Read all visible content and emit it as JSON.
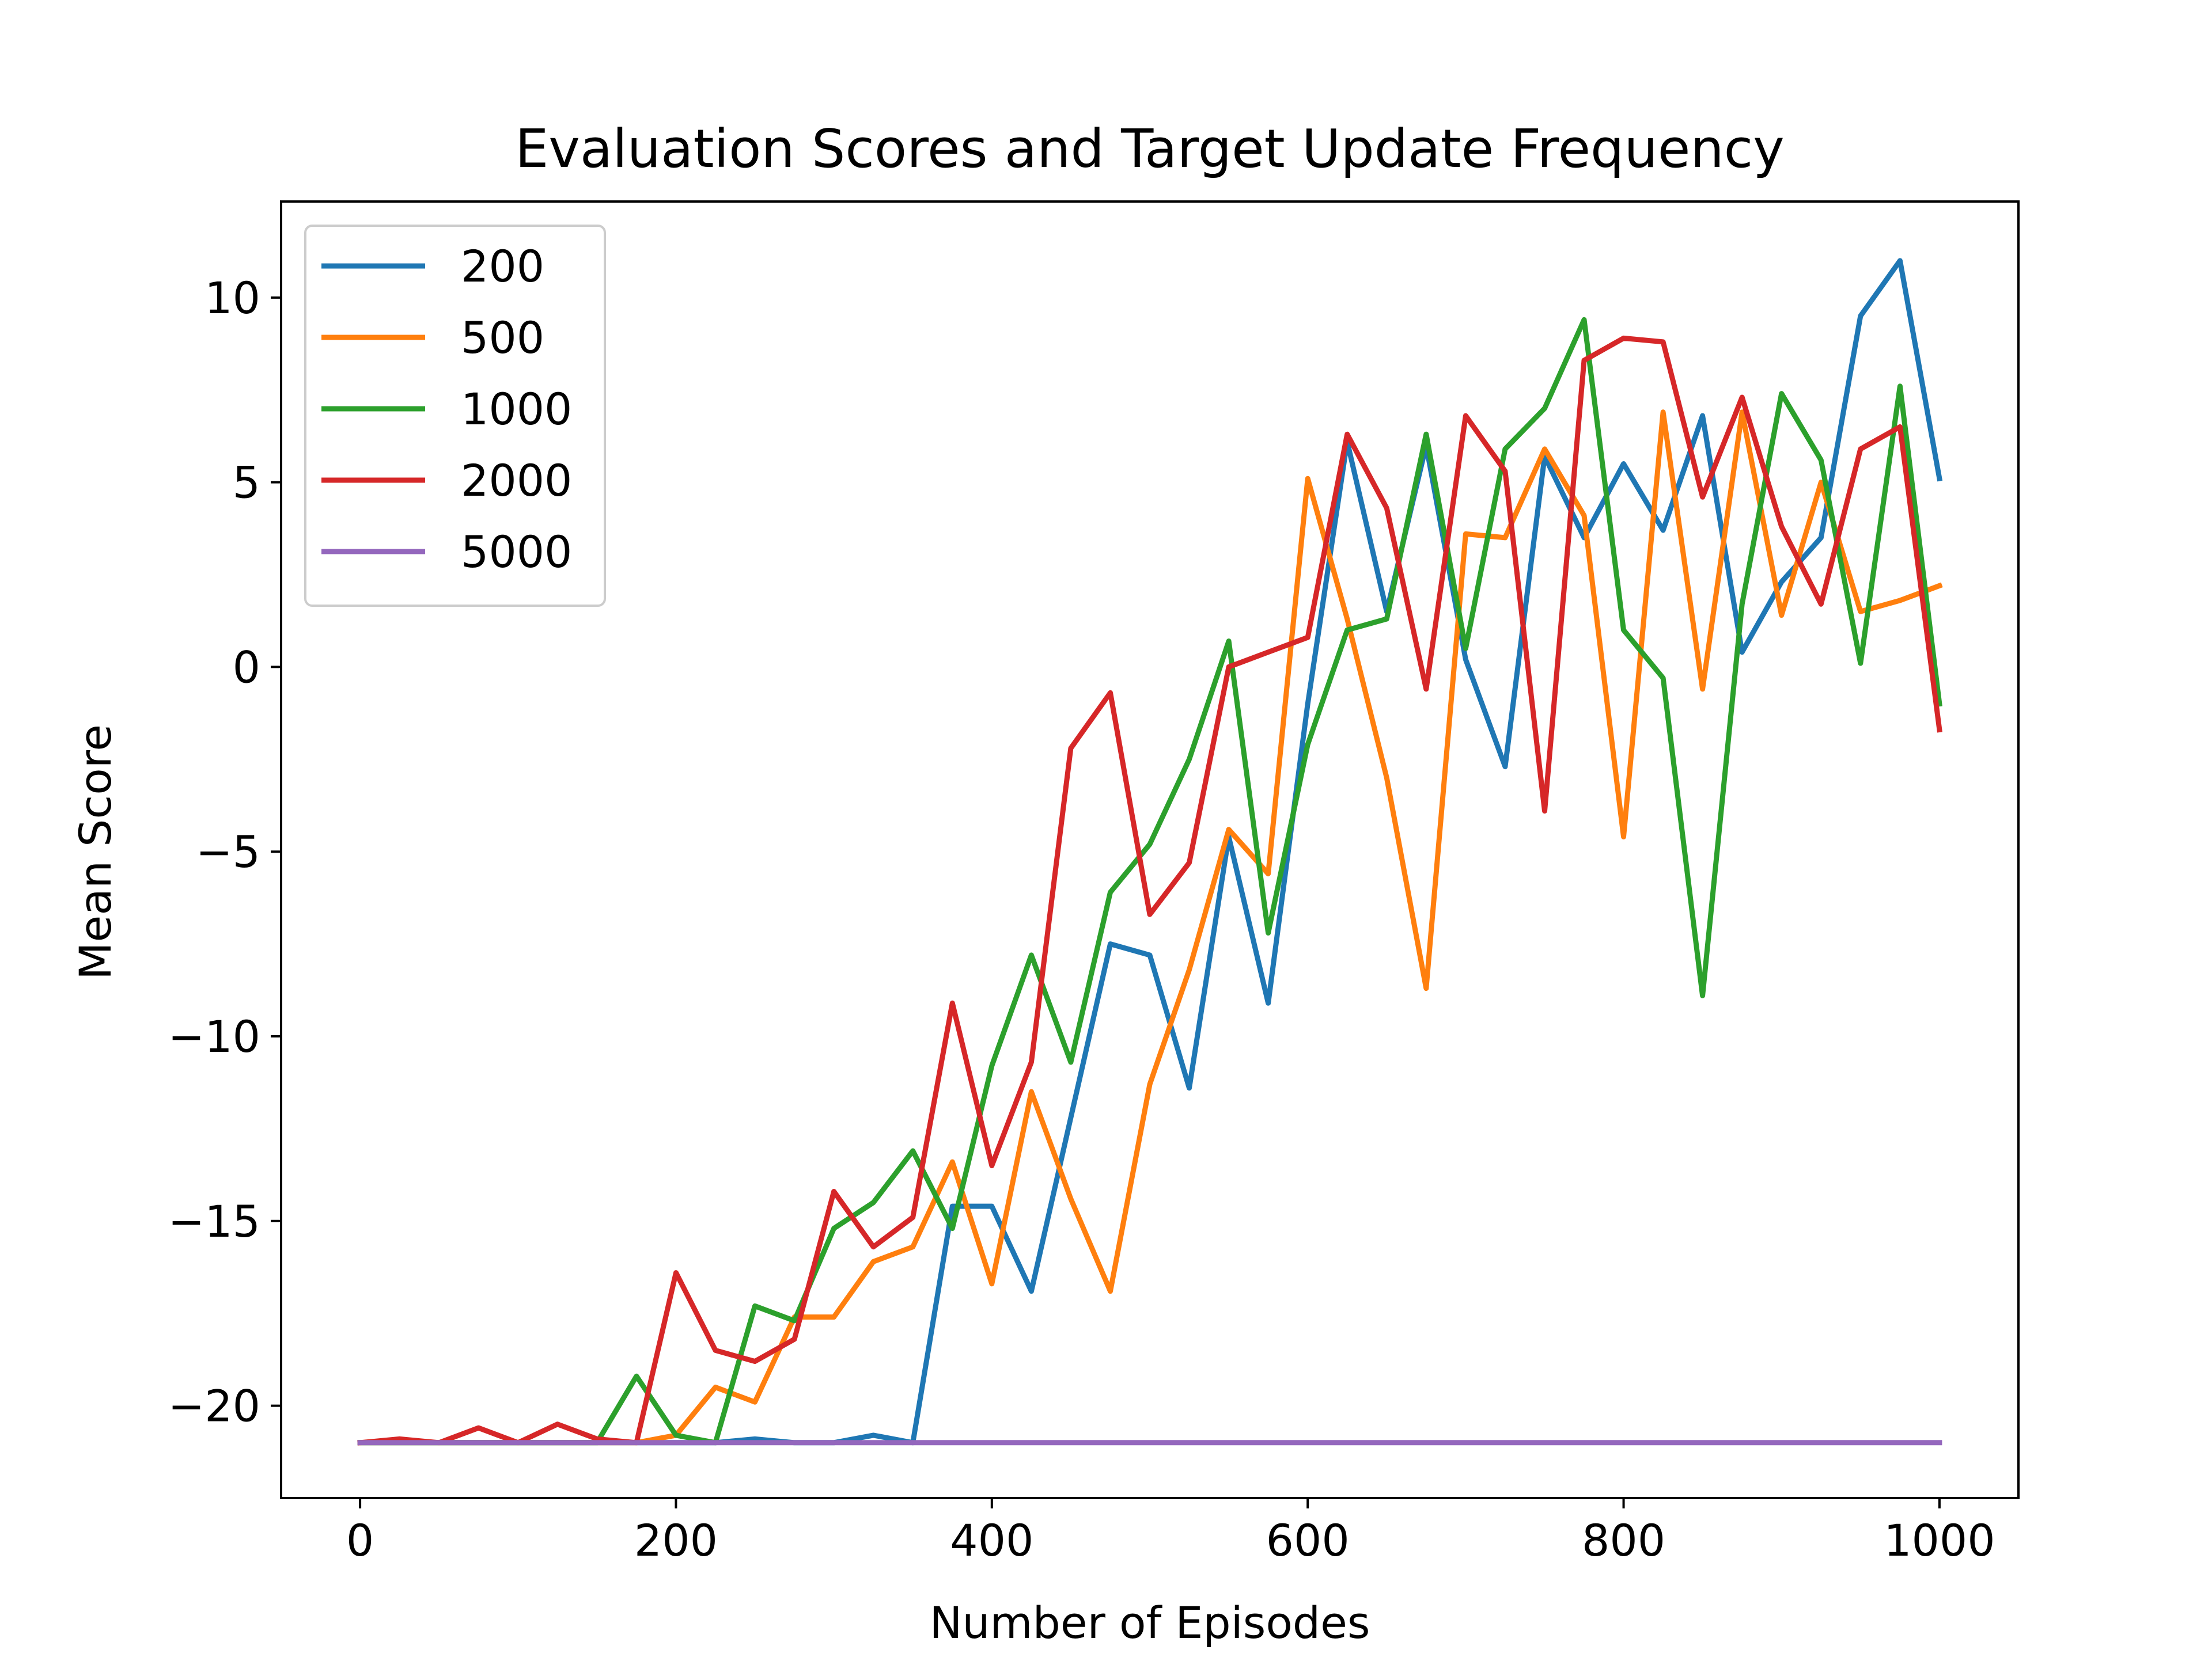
{
  "chart_data": {
    "type": "line",
    "title": "Evaluation Scores and Target Update Frequency",
    "xlabel": "Number of Episodes",
    "ylabel": "Mean Score",
    "xlim": [
      -50,
      1050
    ],
    "ylim": [
      -22.5,
      12.6
    ],
    "xticks": [
      0,
      200,
      400,
      600,
      800,
      1000
    ],
    "yticks": [
      -20,
      -15,
      -10,
      -5,
      0,
      5,
      10
    ],
    "ytick_labels": [
      "−20",
      "−15",
      "−10",
      "−5",
      "0",
      "5",
      "10"
    ],
    "grid": false,
    "legend_position": "top-left",
    "x": [
      0,
      25,
      50,
      75,
      100,
      125,
      150,
      175,
      200,
      225,
      250,
      275,
      300,
      325,
      350,
      375,
      400,
      425,
      450,
      475,
      500,
      525,
      550,
      575,
      600,
      625,
      650,
      675,
      700,
      725,
      750,
      775,
      800,
      825,
      850,
      875,
      900,
      925,
      950,
      975,
      1000
    ],
    "series": [
      {
        "name": "200",
        "color": "#1f77b4",
        "values": [
          -21,
          -21,
          -21,
          -21,
          -21,
          -21,
          -21,
          -21,
          -21,
          -21,
          -20.9,
          -21,
          -21,
          -20.8,
          -21,
          -14.6,
          -14.6,
          -16.9,
          -12.2,
          -7.5,
          -7.8,
          -11.4,
          -4.6,
          -9.1,
          -1,
          6.1,
          1.5,
          6,
          0.2,
          -2.7,
          5.7,
          3.5,
          5.5,
          3.7,
          6.8,
          0.4,
          2.3,
          3.5,
          9.5,
          11,
          5.1
        ]
      },
      {
        "name": "500",
        "color": "#ff7f0e",
        "values": [
          -21,
          -21,
          -21,
          -21,
          -21,
          -21,
          -21,
          -21,
          -20.8,
          -19.5,
          -19.9,
          -17.6,
          -17.6,
          -16.1,
          -15.7,
          -13.4,
          -16.7,
          -11.5,
          -14.4,
          -16.9,
          -11.3,
          -8.2,
          -4.4,
          -5.6,
          5.1,
          1.3,
          -3,
          -8.7,
          3.6,
          3.5,
          5.9,
          4.1,
          -4.6,
          6.9,
          -0.6,
          6.9,
          1.4,
          5,
          1.5,
          1.8,
          2.2
        ]
      },
      {
        "name": "1000",
        "color": "#2ca02c",
        "values": [
          -21,
          -21,
          -21,
          -21,
          -21,
          -21,
          -21,
          -19.2,
          -20.8,
          -21,
          -17.3,
          -17.7,
          -15.2,
          -14.5,
          -13.1,
          -15.2,
          -10.8,
          -7.8,
          -10.7,
          -6.1,
          -4.8,
          -2.5,
          0.7,
          -7.2,
          -2.1,
          1,
          1.3,
          6.3,
          0.5,
          5.9,
          7,
          9.4,
          1,
          -0.3,
          -8.9,
          1.7,
          7.4,
          5.6,
          0.1,
          7.6,
          -1
        ]
      },
      {
        "name": "2000",
        "color": "#d62728",
        "values": [
          -21,
          -20.9,
          -21,
          -20.6,
          -21,
          -20.5,
          -20.9,
          -21,
          -16.4,
          -18.5,
          -18.8,
          -18.2,
          -14.2,
          -15.7,
          -14.9,
          -9.1,
          -13.5,
          -10.7,
          -2.2,
          -0.7,
          -6.7,
          -5.3,
          0,
          0.4,
          0.8,
          6.3,
          4.3,
          -0.6,
          6.8,
          5.3,
          -3.9,
          8.3,
          8.9,
          8.8,
          4.6,
          7.3,
          3.8,
          1.7,
          5.9,
          6.5,
          -1.7
        ]
      },
      {
        "name": "5000",
        "color": "#9467bd",
        "values": [
          -21,
          -21,
          -21,
          -21,
          -21,
          -21,
          -21,
          -21,
          -21,
          -21,
          -21,
          -21,
          -21,
          -21,
          -21,
          -21,
          -21,
          -21,
          -21,
          -21,
          -21,
          -21,
          -21,
          -21,
          -21,
          -21,
          -21,
          -21,
          -21,
          -21,
          -21,
          -21,
          -21,
          -21,
          -21,
          -21,
          -21,
          -21,
          -21,
          -21,
          -21
        ]
      }
    ]
  }
}
